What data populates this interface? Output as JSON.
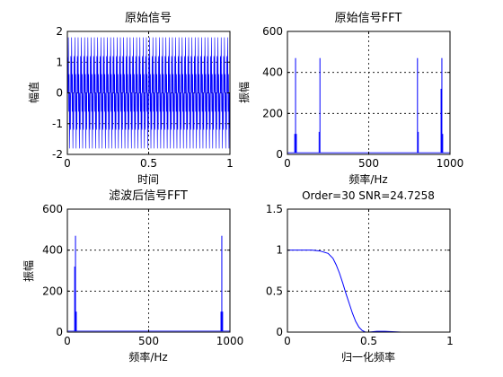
{
  "figure": {
    "background": "#ffffff",
    "trace_color": "#0000ff",
    "axes_color": "#000000"
  },
  "chart_data": [
    {
      "type": "line",
      "title": "原始信号",
      "xlabel": "时间",
      "ylabel": "幅值",
      "xlim": [
        0,
        1
      ],
      "ylim": [
        -2,
        2
      ],
      "xticks": [
        "0",
        "0.5",
        "1"
      ],
      "yticks": [
        "-2",
        "-1",
        "0",
        "1",
        "2"
      ],
      "grid": true,
      "series": [
        {
          "color": "#0000ff",
          "signal": "sum of sines, 50 Hz amplitude 1 + 200 Hz amplitude 1",
          "x_start": 0,
          "x_end": 1,
          "samples": 1000,
          "y_min": -1.9,
          "y_max": 1.9
        }
      ]
    },
    {
      "type": "line",
      "title": "原始信号FFT",
      "xlabel": "频率/Hz",
      "ylabel": "振幅",
      "xlim": [
        0,
        1000
      ],
      "ylim": [
        0,
        600
      ],
      "xticks": [
        "0",
        "500",
        "1000"
      ],
      "yticks": [
        "0",
        "200",
        "400",
        "600"
      ],
      "grid": true,
      "series": [
        {
          "color": "#0000ff",
          "peaks": [
            {
              "x": 50,
              "y": 470
            },
            {
              "x": 200,
              "y": 470
            },
            {
              "x": 800,
              "y": 470
            },
            {
              "x": 950,
              "y": 470
            },
            {
              "x": 45,
              "y": 100
            },
            {
              "x": 55,
              "y": 100
            },
            {
              "x": 195,
              "y": 110
            },
            {
              "x": 805,
              "y": 110
            },
            {
              "x": 945,
              "y": 320
            },
            {
              "x": 955,
              "y": 100
            }
          ],
          "baseline": 8
        }
      ]
    },
    {
      "type": "line",
      "title": "滤波后信号FFT",
      "xlabel": "频率/Hz",
      "ylabel": "振幅",
      "xlim": [
        0,
        1000
      ],
      "ylim": [
        0,
        600
      ],
      "xticks": [
        "0",
        "500",
        "1000"
      ],
      "yticks": [
        "0",
        "200",
        "400",
        "600"
      ],
      "grid": true,
      "series": [
        {
          "color": "#0000ff",
          "peaks": [
            {
              "x": 50,
              "y": 470
            },
            {
              "x": 950,
              "y": 470
            },
            {
              "x": 45,
              "y": 320
            },
            {
              "x": 55,
              "y": 100
            },
            {
              "x": 945,
              "y": 100
            },
            {
              "x": 955,
              "y": 100
            }
          ],
          "baseline": 5
        }
      ]
    },
    {
      "type": "line",
      "title": "Order=30 SNR=24.7258",
      "xlabel": "归一化频率",
      "ylabel": "",
      "xlim": [
        0,
        1
      ],
      "ylim": [
        0,
        1.5
      ],
      "xticks": [
        "0",
        "0.5",
        "1"
      ],
      "yticks": [
        "0",
        "0.5",
        "1",
        "1.5"
      ],
      "grid": true,
      "series": [
        {
          "color": "#0000ff",
          "x": [
            0,
            0.05,
            0.1,
            0.15,
            0.2,
            0.25,
            0.28,
            0.3,
            0.32,
            0.34,
            0.36,
            0.38,
            0.4,
            0.42,
            0.44,
            0.46,
            0.48,
            0.5,
            0.55,
            0.6,
            0.7,
            0.8,
            0.9,
            1.0
          ],
          "y": [
            1.0,
            1.0,
            1.0,
            1.0,
            0.99,
            0.96,
            0.9,
            0.82,
            0.72,
            0.6,
            0.47,
            0.35,
            0.23,
            0.13,
            0.06,
            0.02,
            0.0,
            0.0,
            0.01,
            0.01,
            0.0,
            0.0,
            0.0,
            0.0
          ]
        }
      ]
    }
  ]
}
